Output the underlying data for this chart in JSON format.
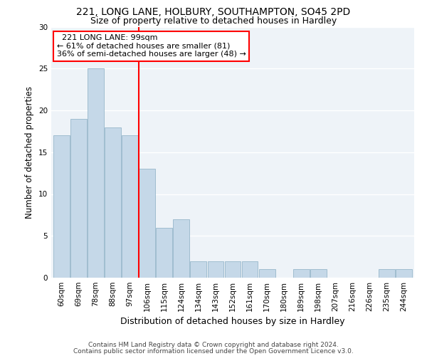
{
  "title1": "221, LONG LANE, HOLBURY, SOUTHAMPTON, SO45 2PD",
  "title2": "Size of property relative to detached houses in Hardley",
  "xlabel": "Distribution of detached houses by size in Hardley",
  "ylabel": "Number of detached properties",
  "categories": [
    "60sqm",
    "69sqm",
    "78sqm",
    "88sqm",
    "97sqm",
    "106sqm",
    "115sqm",
    "124sqm",
    "134sqm",
    "143sqm",
    "152sqm",
    "161sqm",
    "170sqm",
    "180sqm",
    "189sqm",
    "198sqm",
    "207sqm",
    "216sqm",
    "226sqm",
    "235sqm",
    "244sqm"
  ],
  "values": [
    17,
    19,
    25,
    18,
    17,
    13,
    6,
    7,
    2,
    2,
    2,
    2,
    1,
    0,
    1,
    1,
    0,
    0,
    0,
    1,
    1
  ],
  "bar_color": "#c5d8e8",
  "bar_edge_color": "#a0bdd0",
  "redline_x": 4.52,
  "annotation_text": "  221 LONG LANE: 99sqm\n← 61% of detached houses are smaller (81)\n36% of semi-detached houses are larger (48) →",
  "annotation_box_color": "white",
  "annotation_box_edge_color": "red",
  "redline_color": "red",
  "ylim": [
    0,
    30
  ],
  "yticks": [
    0,
    5,
    10,
    15,
    20,
    25,
    30
  ],
  "background_color": "#eef3f8",
  "grid_color": "white",
  "footer1": "Contains HM Land Registry data © Crown copyright and database right 2024.",
  "footer2": "Contains public sector information licensed under the Open Government Licence v3.0.",
  "title1_fontsize": 10,
  "title2_fontsize": 9,
  "xlabel_fontsize": 9,
  "ylabel_fontsize": 8.5,
  "tick_fontsize": 7.5,
  "annot_fontsize": 8,
  "footer_fontsize": 6.5
}
